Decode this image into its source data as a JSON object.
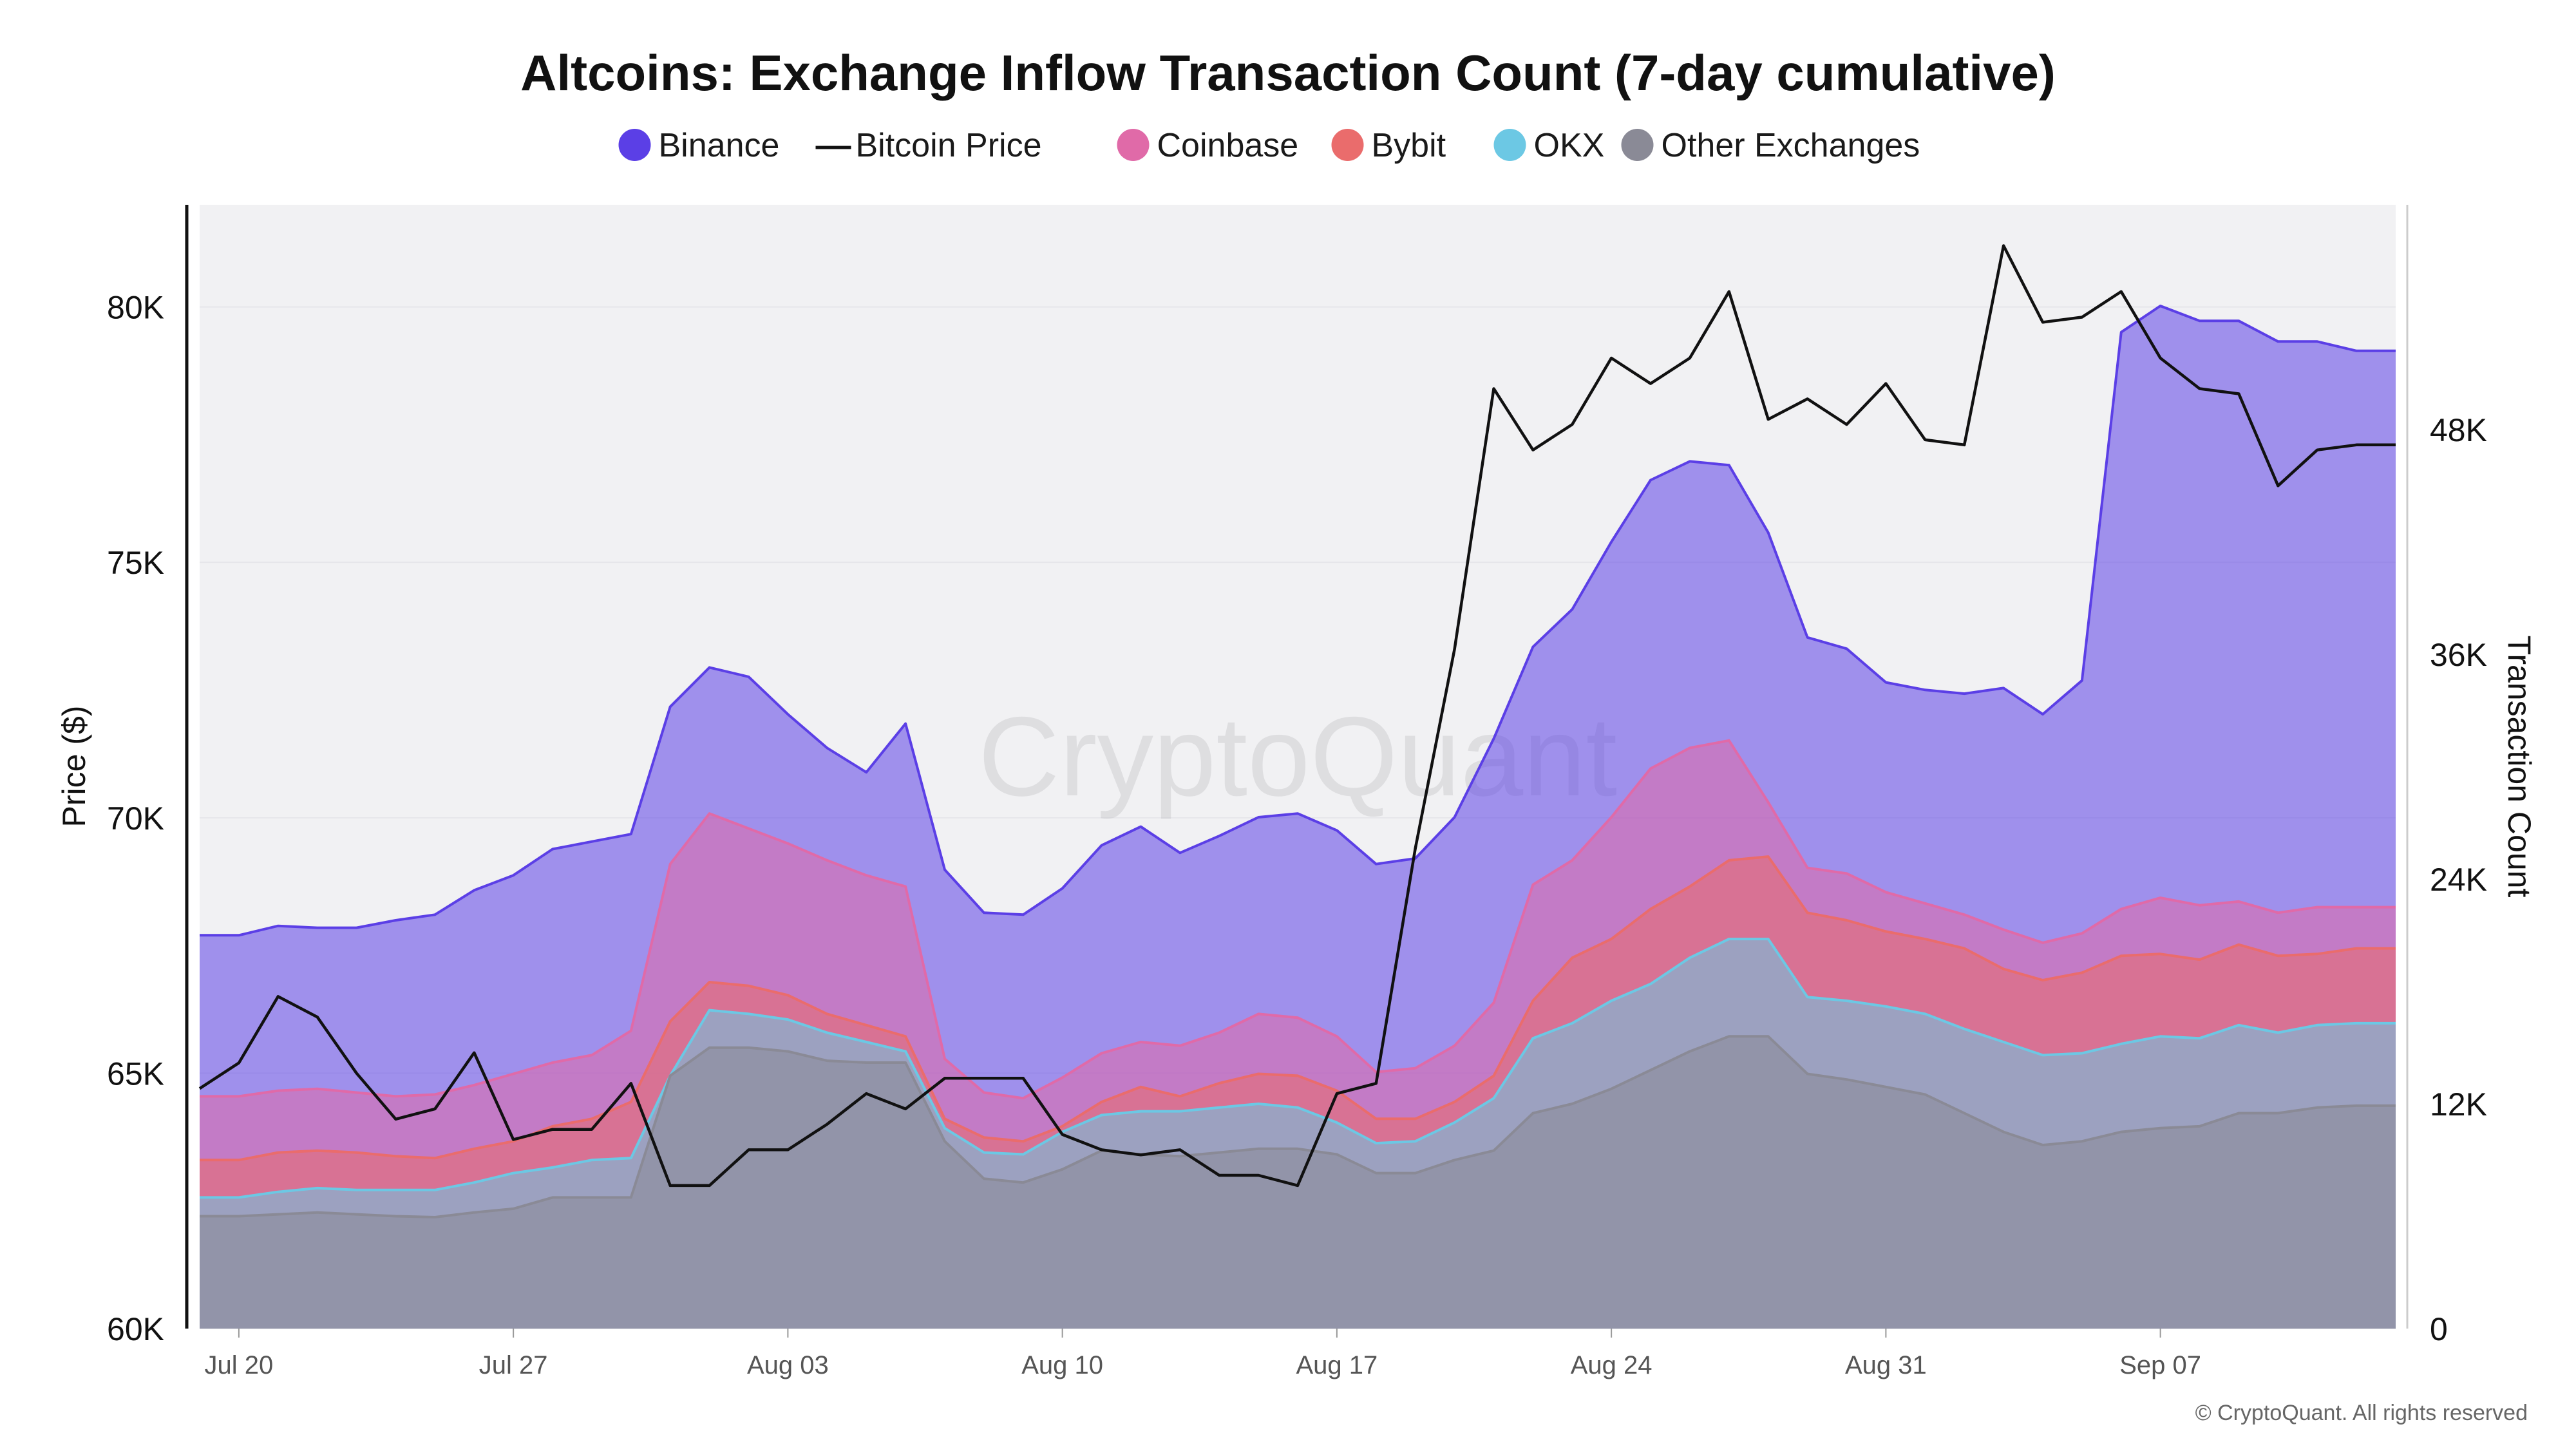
{
  "chart_data": {
    "type": "area",
    "title": "Altcoins: Exchange Inflow Transaction Count (7-day cumulative)",
    "ylabel_left": "Price ($)",
    "ylabel_right": "Transaction Count",
    "watermark": "CryptoQuant",
    "copyright": "© CryptoQuant. All rights reserved",
    "x_start": "2024-07-19",
    "x_end": "2024-09-13",
    "x_ticks": [
      {
        "date": "2024-07-20",
        "label": "Jul 20"
      },
      {
        "date": "2024-07-27",
        "label": "Jul 27"
      },
      {
        "date": "2024-08-03",
        "label": "Aug 03"
      },
      {
        "date": "2024-08-10",
        "label": "Aug 10"
      },
      {
        "date": "2024-08-17",
        "label": "Aug 17"
      },
      {
        "date": "2024-08-24",
        "label": "Aug 24"
      },
      {
        "date": "2024-08-31",
        "label": "Aug 31"
      },
      {
        "date": "2024-09-07",
        "label": "Sep 07"
      }
    ],
    "y_left": {
      "min": 60000,
      "max": 82000,
      "ticks": [
        60000,
        65000,
        70000,
        75000,
        80000
      ],
      "tick_labels": [
        "60K",
        "65K",
        "70K",
        "75K",
        "80K"
      ]
    },
    "y_right": {
      "min": 0,
      "max": 60000,
      "ticks": [
        0,
        12000,
        24000,
        36000,
        48000
      ],
      "tick_labels": [
        "0",
        "12K",
        "24K",
        "36K",
        "48K"
      ]
    },
    "legend": [
      {
        "name": "Binance",
        "color": "#5b3fe6",
        "marker": "circle"
      },
      {
        "name": "Bitcoin Price",
        "color": "#111111",
        "marker": "line"
      },
      {
        "name": "Coinbase",
        "color": "#e06aa8",
        "marker": "circle"
      },
      {
        "name": "Bybit",
        "color": "#ea6c6c",
        "marker": "circle"
      },
      {
        "name": "OKX",
        "color": "#6cc8e4",
        "marker": "circle"
      },
      {
        "name": "Other Exchanges",
        "color": "#8a8a96",
        "marker": "circle"
      }
    ],
    "grid": true,
    "legend_position": "top-center",
    "dates": [
      "2024-07-19",
      "2024-07-20",
      "2024-07-21",
      "2024-07-22",
      "2024-07-23",
      "2024-07-24",
      "2024-07-25",
      "2024-07-26",
      "2024-07-27",
      "2024-07-28",
      "2024-07-29",
      "2024-07-30",
      "2024-07-31",
      "2024-08-01",
      "2024-08-02",
      "2024-08-03",
      "2024-08-04",
      "2024-08-05",
      "2024-08-06",
      "2024-08-07",
      "2024-08-08",
      "2024-08-09",
      "2024-08-10",
      "2024-08-11",
      "2024-08-12",
      "2024-08-13",
      "2024-08-14",
      "2024-08-15",
      "2024-08-16",
      "2024-08-17",
      "2024-08-18",
      "2024-08-19",
      "2024-08-20",
      "2024-08-21",
      "2024-08-22",
      "2024-08-23",
      "2024-08-24",
      "2024-08-25",
      "2024-08-26",
      "2024-08-27",
      "2024-08-28",
      "2024-08-29",
      "2024-08-30",
      "2024-08-31",
      "2024-09-01",
      "2024-09-02",
      "2024-09-03",
      "2024-09-04",
      "2024-09-05",
      "2024-09-06",
      "2024-09-07",
      "2024-09-08",
      "2024-09-09",
      "2024-09-10",
      "2024-09-11",
      "2024-09-12",
      "2024-09-13"
    ],
    "series": [
      {
        "name": "Other Exchanges",
        "axis": "right",
        "stack_top": true,
        "color": "#8a8a96",
        "values": [
          6000,
          6000,
          6100,
          6200,
          6100,
          6000,
          5950,
          6200,
          6400,
          7000,
          7000,
          7000,
          13500,
          15000,
          15000,
          14800,
          14300,
          14200,
          14200,
          10000,
          8000,
          7800,
          8500,
          9500,
          9300,
          9200,
          9400,
          9600,
          9600,
          9300,
          8300,
          8300,
          9000,
          9500,
          11500,
          12000,
          12800,
          13800,
          14800,
          15600,
          15600,
          13600,
          13300,
          12900,
          12500,
          11500,
          10500,
          9800,
          10000,
          10500,
          10700,
          10800,
          11500,
          11500,
          11800,
          11900,
          11900
        ]
      },
      {
        "name": "OKX",
        "axis": "right",
        "stack_top": true,
        "color": "#6cc8e4",
        "values": [
          7000,
          7000,
          7300,
          7500,
          7400,
          7400,
          7400,
          7800,
          8300,
          8600,
          9000,
          9100,
          13500,
          17000,
          16800,
          16500,
          15800,
          15300,
          14800,
          10700,
          9400,
          9300,
          10500,
          11400,
          11600,
          11600,
          11800,
          12000,
          11800,
          11000,
          9900,
          10000,
          11000,
          12300,
          15500,
          16300,
          17500,
          18400,
          19800,
          20800,
          20800,
          17700,
          17500,
          17200,
          16800,
          16000,
          15300,
          14600,
          14700,
          15200,
          15600,
          15500,
          16200,
          15800,
          16200,
          16300,
          16300
        ]
      },
      {
        "name": "Bybit",
        "axis": "right",
        "stack_top": true,
        "color": "#ea6c6c",
        "values": [
          9000,
          9000,
          9400,
          9500,
          9400,
          9200,
          9100,
          9600,
          10000,
          10800,
          11200,
          12100,
          16400,
          18500,
          18300,
          17800,
          16800,
          16200,
          15600,
          11200,
          10200,
          10000,
          10800,
          12100,
          12900,
          12400,
          13100,
          13600,
          13500,
          12700,
          11200,
          11200,
          12100,
          13500,
          17500,
          19800,
          20800,
          22400,
          23600,
          25000,
          25200,
          22200,
          21800,
          21200,
          20800,
          20300,
          19200,
          18600,
          19000,
          19900,
          20000,
          19700,
          20500,
          19900,
          20000,
          20300,
          20300
        ]
      },
      {
        "name": "Coinbase",
        "axis": "right",
        "stack_top": true,
        "color": "#e06aa8",
        "values": [
          12400,
          12400,
          12700,
          12800,
          12600,
          12400,
          12500,
          13000,
          13600,
          14200,
          14600,
          15900,
          24800,
          27500,
          26700,
          25900,
          25000,
          24200,
          23600,
          14400,
          12600,
          12300,
          13400,
          14700,
          15300,
          15100,
          15800,
          16800,
          16600,
          15600,
          13700,
          13900,
          15100,
          17400,
          23700,
          25000,
          27300,
          29900,
          31000,
          31400,
          28100,
          24600,
          24300,
          23300,
          22700,
          22100,
          21300,
          20600,
          21100,
          22400,
          23000,
          22600,
          22800,
          22200,
          22500,
          22500,
          22500
        ]
      },
      {
        "name": "Binance",
        "axis": "right",
        "stack_top": true,
        "color": "#5b3fe6",
        "values": [
          21000,
          21000,
          21500,
          21400,
          21400,
          21800,
          22100,
          23400,
          24200,
          25600,
          26000,
          26400,
          33200,
          35300,
          34800,
          32800,
          31000,
          29700,
          32300,
          24500,
          22200,
          22100,
          23500,
          25800,
          26800,
          25400,
          26300,
          27300,
          27500,
          26600,
          24800,
          25100,
          27300,
          31500,
          36400,
          38400,
          42000,
          45300,
          46300,
          46100,
          42500,
          36900,
          36300,
          34500,
          34100,
          33900,
          34200,
          32800,
          34600,
          53200,
          54600,
          53800,
          53800,
          52700,
          52700,
          52200,
          52200
        ]
      },
      {
        "name": "Bitcoin Price",
        "axis": "left",
        "color": "#111111",
        "values": [
          64700,
          65200,
          66500,
          66100,
          65000,
          64100,
          64300,
          65400,
          63700,
          63900,
          63900,
          64800,
          62800,
          62800,
          63500,
          63500,
          64000,
          64600,
          64300,
          64900,
          64900,
          64900,
          63800,
          63500,
          63400,
          63500,
          63000,
          63000,
          62800,
          64600,
          64800,
          69400,
          73300,
          78400,
          77200,
          77700,
          79000,
          78500,
          79000,
          80300,
          77800,
          78200,
          77700,
          78500,
          77400,
          77300,
          81200,
          79700,
          79800,
          80300,
          79000,
          78400,
          78300,
          76500,
          77200,
          77300,
          77300
        ]
      }
    ]
  }
}
